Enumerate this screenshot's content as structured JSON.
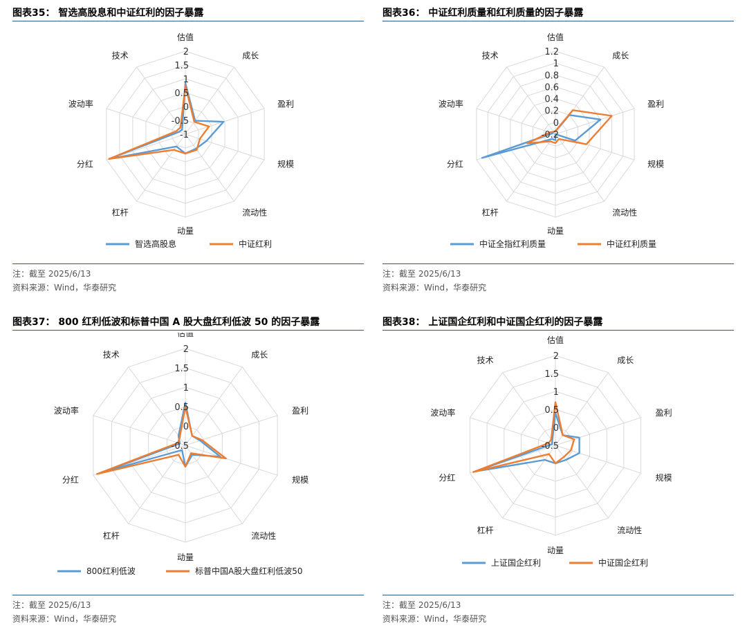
{
  "colors": {
    "blue": "#5b9bd5",
    "orange": "#ed7d31",
    "grid": "#d9d9d9",
    "rule": "#2f5b8c"
  },
  "panels": [
    {
      "title": "图表35： 智选高股息和中证红利的因子暴露",
      "note": "注：截至 2025/6/13",
      "source": "资料来源：Wind，华泰研究"
    },
    {
      "title": "图表36： 中证红利质量和红利质量的因子暴露",
      "note": "注：截至 2025/6/13",
      "source": "资料来源：Wind，华泰研究"
    },
    {
      "title": "图表37： 800 红利低波和标普中国 A 股大盘红利低波 50 的因子暴露",
      "note": "注：截至 2025/6/13",
      "source": "资料来源：Wind，华泰研究"
    },
    {
      "title": "图表38： 上证国企红利和中证国企红利的因子暴露",
      "note": "注：截至 2025/6/13",
      "source": "资料来源：Wind，华泰研究"
    }
  ],
  "chart_data": [
    {
      "type": "radar",
      "categories": [
        "估值",
        "成长",
        "盈利",
        "规模",
        "流动性",
        "动量",
        "杠杆",
        "分红",
        "波动率",
        "技术"
      ],
      "ticks": [
        "2",
        "1.5",
        "1",
        "0.5",
        "0",
        "-0.5",
        "-1"
      ],
      "range": [
        -1,
        2
      ],
      "grid": true,
      "legend_position": "bottom",
      "series": [
        {
          "name": "智选高股息",
          "values": [
            0.85,
            -0.4,
            0.45,
            -0.2,
            -0.35,
            -0.3,
            -0.45,
            1.9,
            -0.75,
            -0.8
          ]
        },
        {
          "name": "中证红利",
          "values": [
            0.75,
            -0.45,
            -0.1,
            -0.45,
            -0.3,
            -0.3,
            -0.3,
            1.9,
            -0.65,
            -0.7
          ]
        }
      ]
    },
    {
      "type": "radar",
      "categories": [
        "估值",
        "成长",
        "盈利",
        "规模",
        "流动性",
        "动量",
        "杠杆",
        "分红",
        "波动率",
        "技术"
      ],
      "ticks": [
        "1.2",
        "1",
        "0.8",
        "0.6",
        "0.4",
        "0.2",
        "0",
        "-0.2"
      ],
      "range": [
        -0.2,
        1.2
      ],
      "grid": true,
      "legend_position": "bottom",
      "series": [
        {
          "name": "中证全指红利质量",
          "values": [
            -0.15,
            0.2,
            0.6,
            0.15,
            -0.2,
            -0.1,
            -0.1,
            1.1,
            -0.15,
            -0.15
          ]
        },
        {
          "name": "中证红利质量",
          "values": [
            -0.15,
            0.3,
            0.8,
            0.35,
            -0.1,
            -0.05,
            -0.05,
            0.3,
            -0.1,
            -0.15
          ]
        }
      ]
    },
    {
      "type": "radar",
      "categories": [
        "估值",
        "成长",
        "盈利",
        "规模",
        "流动性",
        "动量",
        "杠杆",
        "分红",
        "波动率",
        "技术"
      ],
      "ticks": [
        "2",
        "1.5",
        "1",
        "0.5",
        "0",
        "-0.5"
      ],
      "range": [
        -0.5,
        2
      ],
      "grid": true,
      "legend_position": "bottom",
      "series": [
        {
          "name": "800红利低波",
          "values": [
            0.6,
            -0.2,
            -0.1,
            0.45,
            -0.2,
            0.05,
            -0.35,
            1.75,
            -0.35,
            -0.2
          ]
        },
        {
          "name": "标普中国A股大盘红利低波50",
          "values": [
            0.5,
            -0.2,
            -0.05,
            0.6,
            -0.25,
            0.05,
            -0.2,
            1.9,
            -0.3,
            -0.25
          ]
        }
      ]
    },
    {
      "type": "radar",
      "categories": [
        "估值",
        "成长",
        "盈利",
        "规模",
        "流动性",
        "动量",
        "杠杆",
        "分红",
        "波动率",
        "技术"
      ],
      "ticks": [
        "2",
        "1.5",
        "1",
        "0.5",
        "0",
        "-0.5"
      ],
      "range": [
        -0.5,
        2
      ],
      "grid": true,
      "legend_position": "bottom",
      "series": [
        {
          "name": "上证国企红利",
          "values": [
            0.4,
            -0.15,
            0.2,
            0.2,
            0.0,
            0.0,
            0.0,
            1.85,
            -0.4,
            -0.35
          ]
        },
        {
          "name": "中证国企红利",
          "values": [
            0.7,
            -0.15,
            0.05,
            -0.05,
            -0.1,
            0.0,
            -0.2,
            1.9,
            -0.3,
            -0.3
          ]
        }
      ]
    }
  ]
}
